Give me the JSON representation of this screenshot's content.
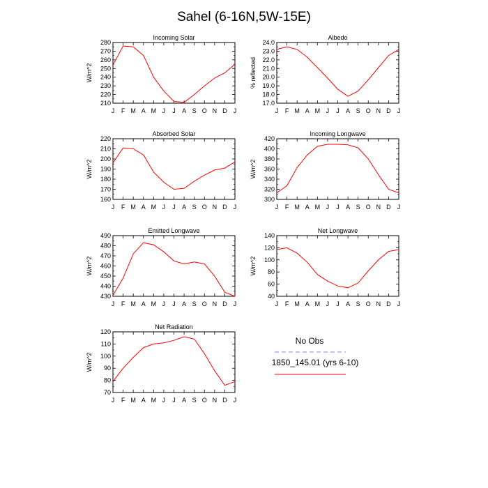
{
  "title": "Sahel (6-16N,5W-15E)",
  "colors": {
    "model": "#ff0000",
    "obs": "#7f7fff",
    "axis": "#000000"
  },
  "legend": {
    "obs_label": "No Obs",
    "model_label": "1850_145.01 (yrs 6-10)"
  },
  "chart_data": [
    {
      "type": "line",
      "title": "Incoming Solar",
      "ylabel": "W/m^2",
      "categories": [
        "J",
        "F",
        "M",
        "A",
        "M",
        "J",
        "J",
        "A",
        "S",
        "O",
        "N",
        "D",
        "J"
      ],
      "ylim": [
        210,
        280
      ],
      "yticks": [
        210,
        220,
        230,
        240,
        250,
        260,
        270,
        280
      ],
      "series": [
        {
          "values": [
            254,
            276,
            275,
            265,
            240,
            224,
            212,
            211,
            220,
            230,
            239,
            245,
            255
          ]
        }
      ]
    },
    {
      "type": "line",
      "title": "Albedo",
      "ylabel": "% reflected",
      "categories": [
        "J",
        "F",
        "M",
        "A",
        "M",
        "J",
        "J",
        "A",
        "S",
        "O",
        "N",
        "D",
        "J"
      ],
      "ylim": [
        17.0,
        24.0
      ],
      "yticks": [
        17.0,
        18.0,
        19.0,
        20.0,
        21.0,
        22.0,
        23.0,
        24.0
      ],
      "tick_decimals": 1,
      "series": [
        {
          "values": [
            23.2,
            23.5,
            23.2,
            22.3,
            21.1,
            19.9,
            18.6,
            17.8,
            18.4,
            19.7,
            21.1,
            22.5,
            23.2
          ]
        }
      ]
    },
    {
      "type": "line",
      "title": "Absorbed Solar",
      "ylabel": "W/m^2",
      "categories": [
        "J",
        "F",
        "M",
        "A",
        "M",
        "J",
        "J",
        "A",
        "S",
        "O",
        "N",
        "D",
        "J"
      ],
      "ylim": [
        160,
        220
      ],
      "yticks": [
        160,
        170,
        180,
        190,
        200,
        210,
        220
      ],
      "series": [
        {
          "values": [
            196,
            211,
            210,
            204,
            187,
            177,
            170,
            171,
            178,
            184,
            189,
            191,
            197
          ]
        }
      ]
    },
    {
      "type": "line",
      "title": "Incoming Longwave",
      "ylabel": "W/m^2",
      "categories": [
        "J",
        "F",
        "M",
        "A",
        "M",
        "J",
        "J",
        "A",
        "S",
        "O",
        "N",
        "D",
        "J"
      ],
      "ylim": [
        300,
        420
      ],
      "yticks": [
        300,
        320,
        340,
        360,
        380,
        400,
        420
      ],
      "series": [
        {
          "values": [
            313,
            327,
            363,
            388,
            405,
            409,
            409,
            408,
            402,
            380,
            349,
            320,
            313
          ]
        }
      ]
    },
    {
      "type": "line",
      "title": "Emitted Longwave",
      "ylabel": "W/m^2",
      "categories": [
        "J",
        "F",
        "M",
        "A",
        "M",
        "J",
        "J",
        "A",
        "S",
        "O",
        "N",
        "D",
        "J"
      ],
      "ylim": [
        430,
        490
      ],
      "yticks": [
        430,
        440,
        450,
        460,
        470,
        480,
        490
      ],
      "series": [
        {
          "values": [
            431,
            448,
            472,
            483,
            481,
            474,
            465,
            462,
            464,
            462,
            450,
            434,
            430
          ]
        }
      ]
    },
    {
      "type": "line",
      "title": "Net Longwave",
      "ylabel": "W/m^2",
      "categories": [
        "J",
        "F",
        "M",
        "A",
        "M",
        "J",
        "J",
        "A",
        "S",
        "O",
        "N",
        "D",
        "J"
      ],
      "ylim": [
        40,
        140
      ],
      "yticks": [
        40,
        60,
        80,
        100,
        120,
        140
      ],
      "series": [
        {
          "values": [
            117,
            120,
            111,
            96,
            76,
            65,
            57,
            54,
            62,
            82,
            100,
            114,
            117
          ]
        }
      ]
    },
    {
      "type": "line",
      "title": "Net Radiation",
      "ylabel": "W/m^2",
      "categories": [
        "J",
        "F",
        "M",
        "A",
        "M",
        "J",
        "J",
        "A",
        "S",
        "O",
        "N",
        "D",
        "J"
      ],
      "ylim": [
        70,
        120
      ],
      "yticks": [
        70,
        80,
        90,
        100,
        110,
        120
      ],
      "series": [
        {
          "values": [
            79,
            90,
            99,
            107,
            110,
            111,
            113,
            116,
            114,
            102,
            88,
            76,
            79
          ]
        }
      ]
    }
  ]
}
